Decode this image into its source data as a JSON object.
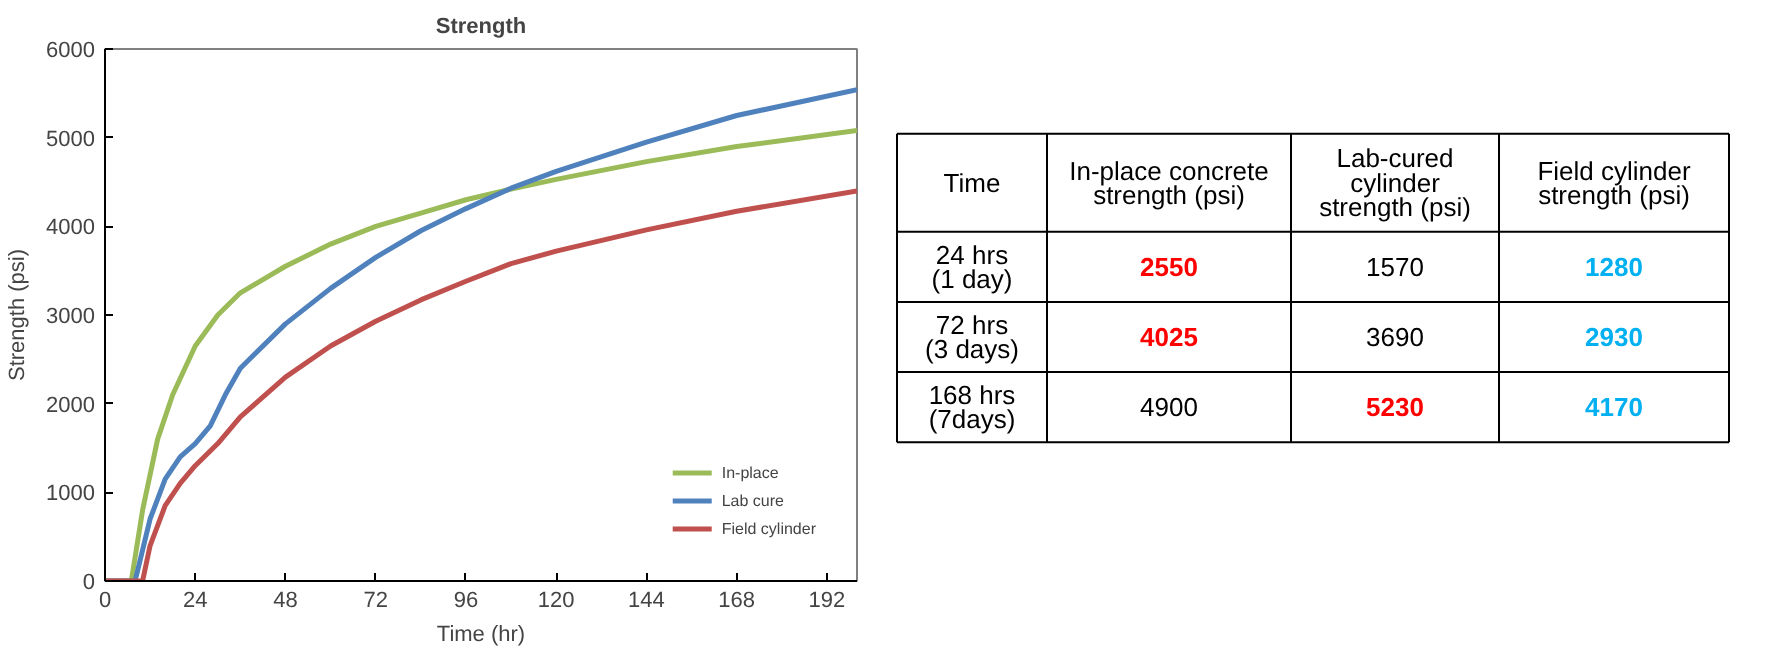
{
  "chart_data": [
    {
      "type": "line",
      "title": "Strength",
      "xlabel": "Time (hr)",
      "ylabel": "Strength (psi)",
      "xlim": [
        0,
        200
      ],
      "xticks": [
        0,
        24,
        48,
        72,
        96,
        120,
        144,
        168,
        192
      ],
      "ylim": [
        0,
        6000
      ],
      "yticks": [
        0,
        1000,
        2000,
        3000,
        4000,
        5000,
        6000
      ],
      "grid": false,
      "legend": "bottom right",
      "marker": "none",
      "line_style": "solid",
      "series": [
        {
          "name": "In-place",
          "color": "#9bbb59",
          "x": [
            0,
            7,
            10,
            14,
            18,
            24,
            30,
            36,
            48,
            60,
            72,
            84,
            96,
            108,
            120,
            144,
            168,
            200
          ],
          "values": [
            0,
            0,
            800,
            1600,
            2100,
            2650,
            3000,
            3250,
            3550,
            3800,
            4000,
            4150,
            4300,
            4420,
            4530,
            4730,
            4900,
            5080
          ]
        },
        {
          "name": "Lab cure",
          "color": "#4f81bd",
          "x": [
            0,
            8,
            12,
            16,
            20,
            24,
            28,
            32,
            36,
            48,
            60,
            72,
            84,
            96,
            108,
            120,
            144,
            168,
            200
          ],
          "values": [
            0,
            0,
            700,
            1150,
            1400,
            1550,
            1750,
            2100,
            2400,
            2900,
            3300,
            3650,
            3950,
            4200,
            4430,
            4620,
            4950,
            5250,
            5540
          ]
        },
        {
          "name": "Field cylinder",
          "color": "#c0504d",
          "x": [
            0,
            10,
            12,
            16,
            20,
            24,
            30,
            36,
            48,
            60,
            72,
            84,
            96,
            108,
            120,
            144,
            168,
            200
          ],
          "values": [
            0,
            0,
            400,
            850,
            1100,
            1300,
            1550,
            1850,
            2300,
            2650,
            2930,
            3170,
            3380,
            3580,
            3720,
            3960,
            4170,
            4400
          ]
        }
      ]
    },
    {
      "type": "other",
      "categories": [
        "Time",
        "In-place concrete strength (psi)",
        "Lab-cured cylinder strength (psi)",
        "Field cylinder strength (psi)"
      ],
      "cell_labels": [
        [
          "24 hrs (1 day)",
          "2550",
          "1570",
          "1280"
        ],
        [
          "72 hrs (3 days)",
          "4025",
          "3690",
          "2930"
        ],
        [
          "168 hrs (7days)",
          "4900",
          "5230",
          "4170"
        ]
      ],
      "colors": [
        [
          null,
          "#ff0000",
          null,
          "#00b0f0"
        ],
        [
          null,
          "#ff0000",
          null,
          "#00b0f0"
        ],
        [
          null,
          null,
          "#ff0000",
          "#00b0f0"
        ]
      ]
    }
  ]
}
